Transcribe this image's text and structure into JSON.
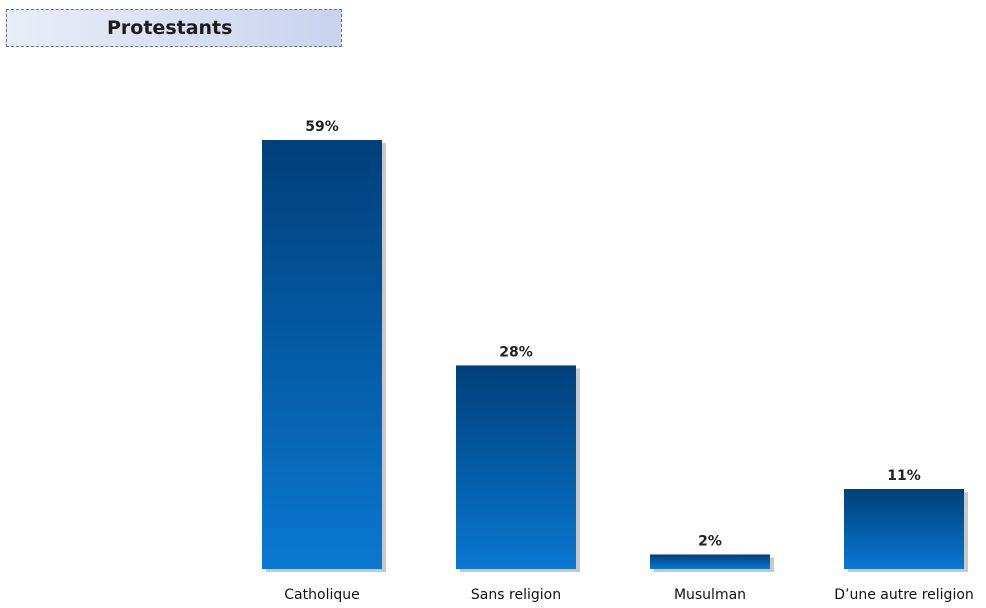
{
  "header": {
    "title": "Protestants"
  },
  "chart_data": {
    "type": "bar",
    "title": "Protestants",
    "categories": [
      "Catholique",
      "Sans religion",
      "Musulman",
      "D’une autre religion"
    ],
    "values": [
      59,
      28,
      2,
      11
    ],
    "value_labels": [
      "59%",
      "28%",
      "2%",
      "11%"
    ],
    "unit": "%",
    "ylim": [
      0,
      59
    ],
    "grid": false,
    "legend": "none",
    "colors": {
      "bar_top": "#003f7a",
      "bar_bottom": "#0a78d1",
      "shadow": "#c8c8c8"
    }
  }
}
